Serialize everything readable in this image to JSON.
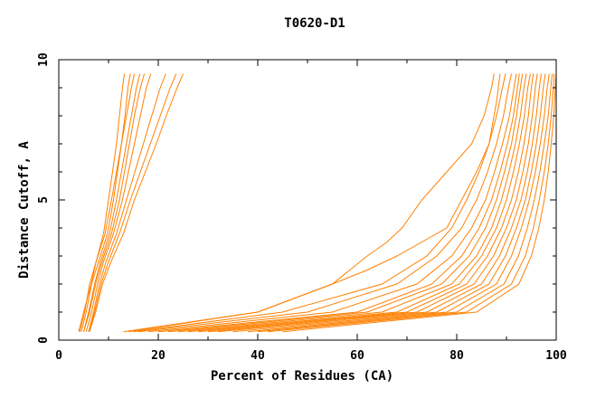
{
  "chart_data": {
    "type": "line",
    "title": "T0620-D1",
    "xlabel": "Percent of Residues (CA)",
    "ylabel": "Distance Cutoff, A",
    "xlim": [
      0,
      100
    ],
    "ylim": [
      0,
      10
    ],
    "x_ticks": [
      "0",
      "20",
      "40",
      "60",
      "80",
      "100"
    ],
    "y_ticks": [
      "0",
      "5",
      "10"
    ],
    "grid": false,
    "line_color": "#ff8000",
    "series": [
      {
        "x": [
          4.0,
          5.0,
          6.5,
          7.5,
          9.0,
          10.0,
          10.8,
          11.6,
          12.2,
          12.8,
          13.2
        ],
        "y": [
          0.3,
          1.0,
          2.0,
          2.8,
          3.8,
          5.0,
          6.0,
          7.0,
          8.0,
          9.0,
          9.5
        ]
      },
      {
        "x": [
          4.5,
          5.5,
          6.6,
          8.0,
          9.8,
          11.0,
          11.8,
          12.6,
          13.3,
          13.9,
          14.4
        ],
        "y": [
          0.3,
          1.0,
          2.0,
          2.8,
          3.8,
          5.0,
          6.0,
          7.0,
          8.0,
          9.0,
          9.5
        ]
      },
      {
        "x": [
          4.2,
          5.2,
          6.2,
          7.5,
          9.3,
          10.6,
          11.6,
          12.6,
          13.6,
          14.6,
          15.2
        ],
        "y": [
          0.3,
          1.0,
          2.0,
          2.8,
          3.8,
          5.0,
          6.0,
          7.0,
          8.0,
          9.0,
          9.5
        ]
      },
      {
        "x": [
          5.0,
          6.0,
          7.2,
          8.4,
          10.2,
          11.6,
          12.6,
          13.6,
          14.6,
          15.6,
          16.3
        ],
        "y": [
          0.3,
          1.0,
          2.0,
          2.8,
          3.8,
          5.0,
          6.0,
          7.0,
          8.0,
          9.0,
          9.5
        ]
      },
      {
        "x": [
          5.0,
          6.2,
          7.4,
          8.7,
          10.6,
          12.2,
          13.2,
          14.2,
          15.2,
          16.4,
          17.2
        ],
        "y": [
          0.3,
          1.0,
          2.0,
          2.8,
          3.8,
          5.0,
          6.0,
          7.0,
          8.0,
          9.0,
          9.5
        ]
      },
      {
        "x": [
          5.5,
          6.6,
          7.8,
          9.0,
          11.0,
          12.8,
          14.0,
          15.2,
          16.4,
          17.6,
          18.5
        ],
        "y": [
          0.3,
          1.0,
          2.0,
          2.8,
          3.8,
          5.0,
          6.0,
          7.0,
          8.0,
          9.0,
          9.5
        ]
      },
      {
        "x": [
          6.0,
          7.0,
          8.2,
          9.5,
          11.6,
          13.6,
          15.3,
          17.0,
          18.7,
          20.4,
          21.5
        ],
        "y": [
          0.3,
          1.0,
          2.0,
          2.8,
          3.8,
          5.0,
          6.0,
          7.0,
          8.0,
          9.0,
          9.5
        ]
      },
      {
        "x": [
          6.0,
          7.2,
          8.5,
          10.0,
          12.2,
          14.4,
          16.4,
          18.4,
          20.4,
          22.4,
          23.6
        ],
        "y": [
          0.3,
          1.0,
          2.0,
          2.8,
          3.8,
          5.0,
          6.0,
          7.0,
          8.0,
          9.0,
          9.5
        ]
      },
      {
        "x": [
          6.2,
          7.4,
          8.8,
          10.5,
          13.0,
          15.2,
          17.4,
          19.6,
          21.6,
          23.8,
          25.0
        ],
        "y": [
          0.3,
          1.0,
          2.0,
          2.8,
          3.8,
          5.0,
          6.0,
          7.0,
          8.0,
          9.0,
          9.5
        ]
      },
      {
        "x": [
          13.0,
          40.0,
          55.0,
          62.0,
          66.0,
          69.0,
          73.0,
          78.0,
          83.0,
          85.5,
          87.0,
          87.5
        ],
        "y": [
          0.3,
          1.0,
          2.0,
          3.0,
          3.5,
          4.0,
          5.0,
          6.0,
          7.0,
          8.0,
          9.0,
          9.5
        ]
      },
      {
        "x": [
          14.0,
          40.0,
          55.0,
          62.0,
          68.0,
          73.0,
          78.0,
          81.0,
          84.0,
          86.5,
          88.0,
          88.7
        ],
        "y": [
          0.3,
          1.0,
          2.0,
          2.5,
          3.0,
          3.5,
          4.0,
          5.0,
          6.0,
          7.0,
          8.5,
          9.5
        ]
      },
      {
        "x": [
          15.0,
          45.0,
          65.0,
          74.0,
          79.0,
          82.0,
          84.5,
          86.5,
          88.0,
          89.2,
          89.8
        ],
        "y": [
          0.3,
          1.0,
          2.0,
          3.0,
          4.0,
          5.0,
          6.0,
          7.0,
          8.0,
          9.0,
          9.5
        ]
      },
      {
        "x": [
          16.0,
          50.0,
          68.0,
          76.0,
          81.0,
          84.0,
          86.2,
          88.0,
          89.4,
          90.4,
          91.0
        ],
        "y": [
          0.3,
          1.0,
          2.0,
          3.0,
          4.0,
          5.0,
          6.0,
          7.0,
          8.0,
          9.0,
          9.5
        ]
      },
      {
        "x": [
          18.0,
          55.0,
          72.0,
          79.0,
          83.0,
          85.8,
          87.6,
          89.2,
          90.6,
          91.5,
          92.0
        ],
        "y": [
          0.3,
          1.0,
          2.0,
          3.0,
          4.0,
          5.0,
          6.0,
          7.0,
          8.0,
          9.0,
          9.5
        ]
      },
      {
        "x": [
          20.0,
          60.0,
          75.0,
          81.0,
          84.5,
          87.0,
          88.7,
          90.2,
          91.4,
          92.2,
          92.6
        ],
        "y": [
          0.3,
          1.0,
          2.0,
          3.0,
          4.0,
          5.0,
          6.0,
          7.0,
          8.0,
          9.0,
          9.5
        ]
      },
      {
        "x": [
          22.0,
          62.0,
          77.0,
          82.5,
          85.8,
          88.0,
          89.6,
          91.0,
          92.0,
          92.8,
          93.2
        ],
        "y": [
          0.3,
          1.0,
          2.0,
          3.0,
          4.0,
          5.0,
          6.0,
          7.0,
          8.0,
          9.0,
          9.5
        ]
      },
      {
        "x": [
          24.0,
          65.0,
          79.0,
          84.0,
          87.0,
          89.0,
          90.5,
          91.8,
          92.8,
          93.5,
          94.0
        ],
        "y": [
          0.3,
          1.0,
          2.0,
          3.0,
          4.0,
          5.0,
          6.0,
          7.0,
          8.0,
          9.0,
          9.5
        ]
      },
      {
        "x": [
          26.0,
          68.0,
          80.5,
          85.0,
          88.0,
          90.0,
          91.4,
          92.6,
          93.6,
          94.3,
          94.8
        ],
        "y": [
          0.3,
          1.0,
          2.0,
          3.0,
          4.0,
          5.0,
          6.0,
          7.0,
          8.0,
          9.0,
          9.5
        ]
      },
      {
        "x": [
          28.0,
          70.0,
          82.0,
          86.2,
          89.0,
          91.0,
          92.4,
          93.5,
          94.4,
          95.0,
          95.4
        ],
        "y": [
          0.3,
          1.0,
          2.0,
          3.0,
          4.0,
          5.0,
          6.0,
          7.0,
          8.0,
          9.0,
          9.5
        ]
      },
      {
        "x": [
          30.0,
          72.0,
          83.5,
          87.4,
          90.0,
          92.0,
          93.3,
          94.4,
          95.2,
          95.8,
          96.2
        ],
        "y": [
          0.3,
          1.0,
          2.0,
          3.0,
          4.0,
          5.0,
          6.0,
          7.0,
          8.0,
          9.0,
          9.5
        ]
      },
      {
        "x": [
          32.0,
          74.0,
          85.0,
          88.6,
          91.0,
          92.9,
          94.2,
          95.2,
          96.0,
          96.6,
          97.0
        ],
        "y": [
          0.3,
          1.0,
          2.0,
          3.0,
          4.0,
          5.0,
          6.0,
          7.0,
          8.0,
          9.0,
          9.5
        ]
      },
      {
        "x": [
          35.0,
          76.0,
          86.5,
          89.8,
          92.0,
          93.8,
          95.0,
          96.0,
          96.8,
          97.4,
          97.8
        ],
        "y": [
          0.3,
          1.0,
          2.0,
          3.0,
          4.0,
          5.0,
          6.0,
          7.0,
          8.0,
          9.0,
          9.5
        ]
      },
      {
        "x": [
          38.0,
          78.0,
          88.0,
          91.0,
          93.0,
          94.6,
          95.8,
          96.8,
          97.6,
          98.2,
          98.6
        ],
        "y": [
          0.3,
          1.0,
          2.0,
          3.0,
          4.0,
          5.0,
          6.0,
          7.0,
          8.0,
          9.0,
          9.5
        ]
      },
      {
        "x": [
          40.0,
          80.0,
          89.5,
          92.4,
          94.2,
          95.6,
          96.7,
          97.6,
          98.4,
          98.9,
          99.2
        ],
        "y": [
          0.3,
          1.0,
          2.0,
          3.0,
          4.0,
          5.0,
          6.0,
          7.0,
          8.0,
          9.0,
          9.5
        ]
      },
      {
        "x": [
          42.0,
          82.0,
          91.0,
          93.8,
          95.4,
          96.6,
          97.6,
          98.4,
          99.0,
          99.4,
          99.6
        ],
        "y": [
          0.3,
          1.0,
          2.0,
          3.0,
          4.0,
          5.0,
          6.0,
          7.0,
          8.0,
          9.0,
          9.5
        ]
      },
      {
        "x": [
          45.0,
          84.0,
          92.5,
          95.0,
          96.5,
          97.6,
          98.4,
          99.0,
          99.5,
          99.8,
          100.0
        ],
        "y": [
          0.3,
          1.0,
          2.0,
          3.0,
          4.0,
          5.0,
          6.0,
          7.0,
          8.0,
          9.0,
          9.5
        ]
      }
    ]
  }
}
